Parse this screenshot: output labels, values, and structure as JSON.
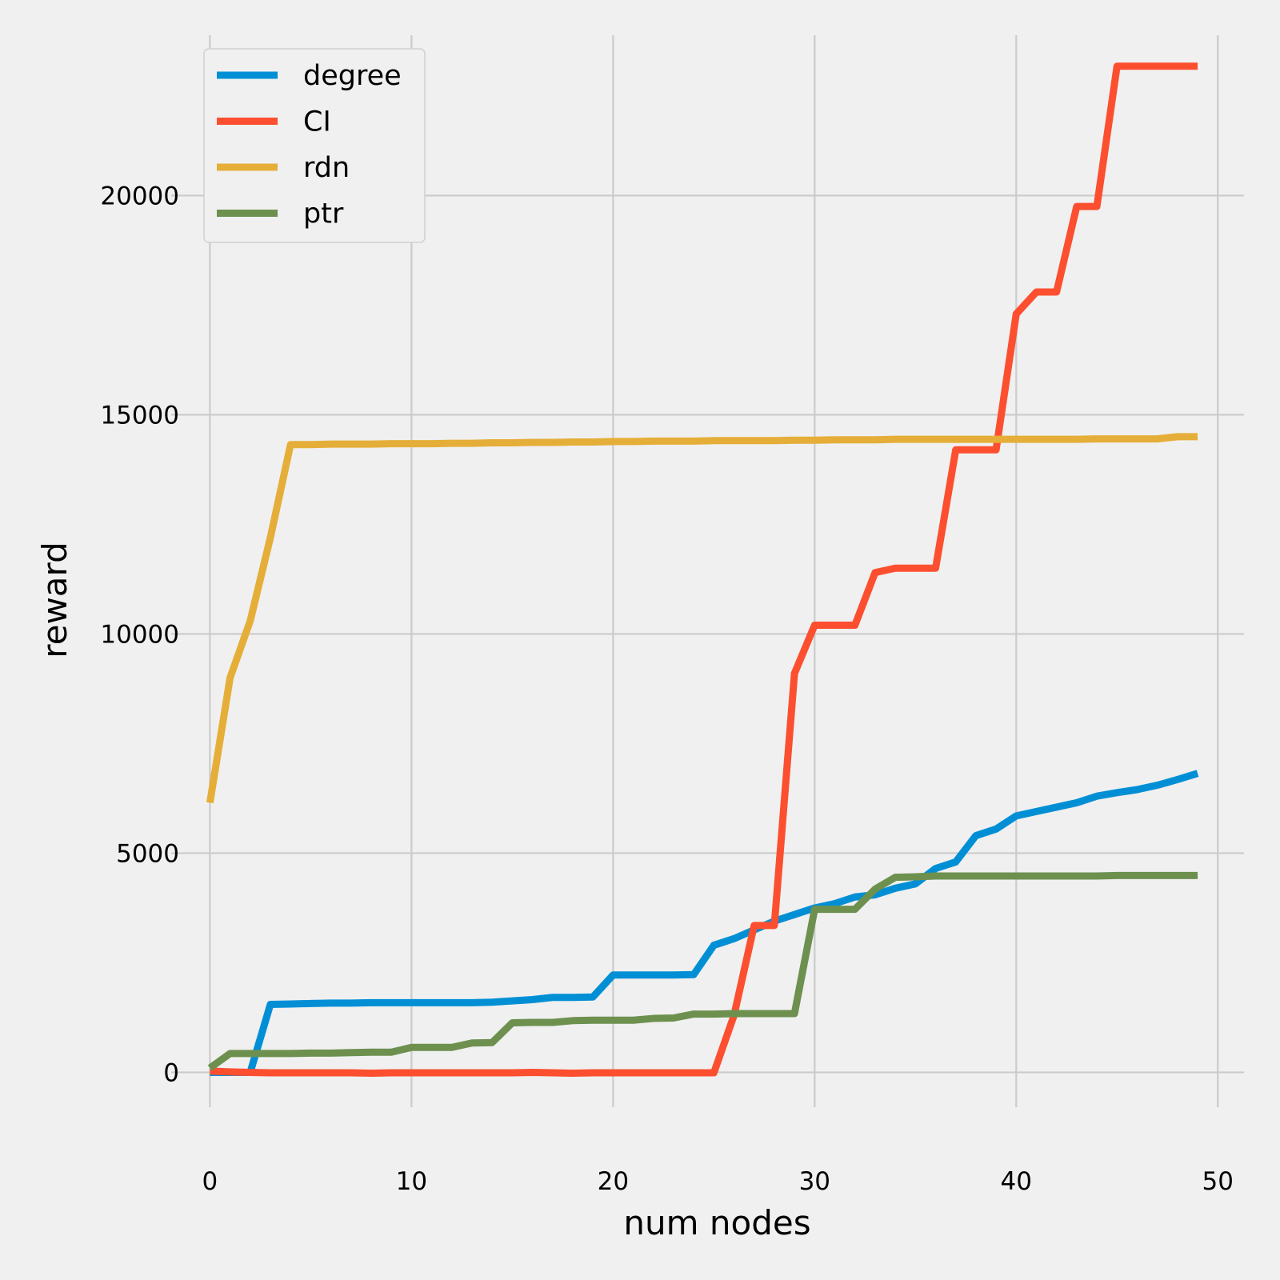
{
  "colors": {
    "background": "#f0f0f0",
    "grid": "#cbcbcb",
    "legend_face": "#f0f0f0",
    "legend_edge": "#d0d0d0"
  },
  "chart_data": {
    "type": "line",
    "xlabel": "num nodes",
    "ylabel": "reward",
    "xlim": [
      -2,
      51.3
    ],
    "ylim": [
      -1050,
      23950
    ],
    "xticks": [
      0,
      10,
      20,
      30,
      40,
      50
    ],
    "yticks": [
      0,
      5000,
      10000,
      15000,
      20000
    ],
    "grid": true,
    "legend": "top-left",
    "series": [
      {
        "name": "degree",
        "color": "#008fd5",
        "x": [
          0,
          1,
          2,
          3,
          4,
          5,
          6,
          7,
          8,
          9,
          10,
          11,
          12,
          13,
          14,
          15,
          16,
          17,
          18,
          19,
          20,
          21,
          22,
          23,
          24,
          25,
          26,
          27,
          28,
          29,
          30,
          31,
          32,
          33,
          34,
          35,
          36,
          37,
          38,
          39,
          40,
          41,
          42,
          43,
          44,
          45,
          46,
          47,
          48,
          49
        ],
        "y": [
          0,
          0,
          0,
          1550,
          1560,
          1570,
          1580,
          1580,
          1590,
          1590,
          1590,
          1590,
          1590,
          1590,
          1600,
          1630,
          1660,
          1710,
          1710,
          1720,
          2220,
          2220,
          2220,
          2220,
          2230,
          2900,
          3050,
          3250,
          3450,
          3600,
          3750,
          3850,
          4000,
          4050,
          4200,
          4300,
          4650,
          4800,
          5400,
          5550,
          5850,
          5950,
          6050,
          6150,
          6300,
          6380,
          6450,
          6550,
          6680,
          6820
        ]
      },
      {
        "name": "CI",
        "color": "#fc4f30",
        "x": [
          0,
          1,
          2,
          3,
          4,
          5,
          6,
          7,
          8,
          9,
          10,
          11,
          12,
          13,
          14,
          15,
          16,
          17,
          18,
          19,
          20,
          21,
          22,
          23,
          24,
          25,
          26,
          27,
          28,
          29,
          30,
          31,
          32,
          33,
          34,
          35,
          36,
          37,
          38,
          39,
          40,
          41,
          42,
          43,
          44,
          45,
          46,
          47,
          48,
          49
        ],
        "y": [
          30,
          10,
          0,
          -10,
          -10,
          -10,
          -10,
          -10,
          -20,
          -10,
          -10,
          -10,
          -10,
          -10,
          -10,
          -10,
          0,
          -10,
          -20,
          -10,
          -10,
          -10,
          -10,
          -10,
          -10,
          -10,
          1300,
          3350,
          3350,
          9100,
          10200,
          10200,
          10200,
          11400,
          11500,
          11500,
          11500,
          14200,
          14200,
          14200,
          17300,
          17800,
          17800,
          19750,
          19750,
          22950,
          22950,
          22950,
          22950,
          22950
        ]
      },
      {
        "name": "rdn",
        "color": "#e5ae38",
        "x": [
          0,
          1,
          2,
          3,
          4,
          5,
          6,
          7,
          8,
          9,
          10,
          11,
          12,
          13,
          14,
          15,
          16,
          17,
          18,
          19,
          20,
          21,
          22,
          23,
          24,
          25,
          26,
          27,
          28,
          29,
          30,
          31,
          32,
          33,
          34,
          35,
          36,
          37,
          38,
          39,
          40,
          41,
          42,
          43,
          44,
          45,
          46,
          47,
          48,
          49
        ],
        "y": [
          6150,
          9000,
          10300,
          12200,
          14320,
          14320,
          14330,
          14330,
          14330,
          14340,
          14340,
          14340,
          14350,
          14350,
          14360,
          14360,
          14370,
          14370,
          14380,
          14380,
          14390,
          14390,
          14400,
          14400,
          14400,
          14410,
          14410,
          14410,
          14410,
          14420,
          14420,
          14430,
          14430,
          14430,
          14440,
          14440,
          14440,
          14440,
          14440,
          14440,
          14440,
          14440,
          14440,
          14440,
          14450,
          14450,
          14450,
          14450,
          14500,
          14500
        ]
      },
      {
        "name": "ptr",
        "color": "#6d904f",
        "x": [
          0,
          1,
          2,
          3,
          4,
          5,
          6,
          7,
          8,
          9,
          10,
          11,
          12,
          13,
          14,
          15,
          16,
          17,
          18,
          19,
          20,
          21,
          22,
          23,
          24,
          25,
          26,
          27,
          28,
          29,
          30,
          31,
          32,
          33,
          34,
          35,
          36,
          37,
          38,
          39,
          40,
          41,
          42,
          43,
          44,
          45,
          46,
          47,
          48,
          49
        ],
        "y": [
          100,
          430,
          430,
          430,
          430,
          440,
          440,
          450,
          460,
          460,
          570,
          570,
          570,
          670,
          680,
          1130,
          1140,
          1140,
          1180,
          1190,
          1190,
          1190,
          1230,
          1240,
          1330,
          1330,
          1340,
          1340,
          1340,
          1340,
          3720,
          3720,
          3720,
          4180,
          4450,
          4460,
          4480,
          4480,
          4480,
          4480,
          4480,
          4480,
          4480,
          4480,
          4480,
          4490,
          4490,
          4490,
          4490,
          4490
        ]
      }
    ]
  }
}
